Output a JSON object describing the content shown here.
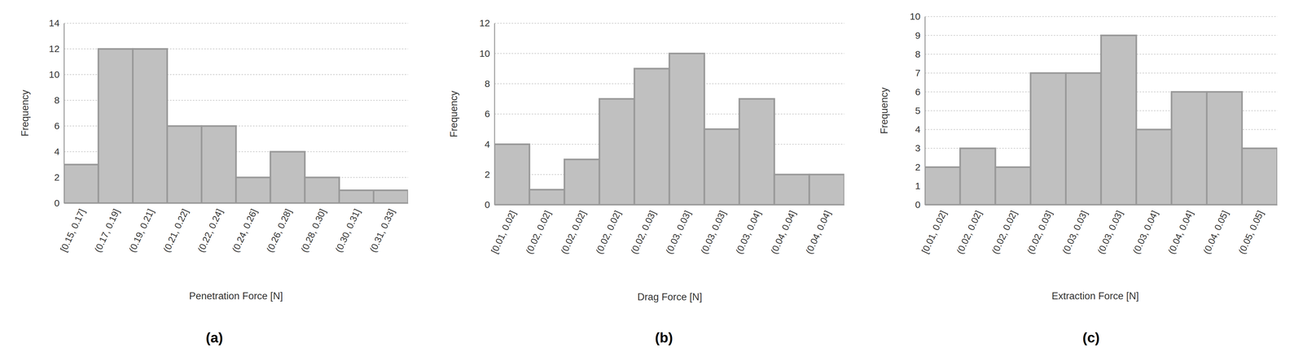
{
  "chart_data": [
    {
      "type": "bar",
      "title": "(a)",
      "x_label": "Penetration Force [N]",
      "y_label": "Frequency",
      "categories": [
        "[0.15, 0.17]",
        "(0.17, 0.19]",
        "(0.19, 0.21]",
        "(0.21, 0.22]",
        "(0.22, 0.24]",
        "(0.24, 0.26]",
        "(0.26, 0.28]",
        "(0.28, 0.30]",
        "(0.30, 0.31]",
        "(0.31, 0.33]"
      ],
      "values": [
        3,
        12,
        12,
        6,
        6,
        2,
        4,
        2,
        1,
        1
      ],
      "color": "#c0c0c0",
      "ylim": [
        0,
        14
      ],
      "yticks": [
        0,
        2,
        4,
        6,
        8,
        10,
        12,
        14
      ],
      "grid": true
    },
    {
      "type": "bar",
      "title": "(b)",
      "x_label": "Drag Force [N]",
      "y_label": "Frequency",
      "categories": [
        "[0.01, 0.02]",
        "(0.02, 0.02]",
        "(0.02, 0.02]",
        "(0.02, 0.02]",
        "(0.02, 0.03]",
        "(0.03, 0.03]",
        "(0.03, 0.03]",
        "(0.03, 0.04]",
        "(0.04, 0.04]",
        "(0.04, 0.04]"
      ],
      "values": [
        4,
        1,
        3,
        7,
        9,
        10,
        5,
        7,
        2,
        2
      ],
      "color": "#c0c0c0",
      "ylim": [
        0,
        12
      ],
      "yticks": [
        0,
        2,
        4,
        6,
        8,
        10,
        12
      ],
      "grid": true
    },
    {
      "type": "bar",
      "title": "(c)",
      "x_label": "Extraction Force [N]",
      "y_label": "Frequency",
      "categories": [
        "[0.01, 0.02]",
        "(0.02, 0.02]",
        "(0.02, 0.02]",
        "(0.02, 0.03]",
        "(0.03, 0.03]",
        "(0.03, 0.03]",
        "(0.03, 0.04]",
        "(0.04, 0.04]",
        "(0.04, 0.05]",
        "(0.05, 0.05]"
      ],
      "values": [
        2,
        3,
        2,
        7,
        7,
        9,
        4,
        6,
        6,
        3
      ],
      "color": "#c0c0c0",
      "ylim": [
        0,
        10
      ],
      "yticks": [
        0,
        1,
        2,
        3,
        4,
        5,
        6,
        7,
        8,
        9,
        10
      ],
      "grid": true
    }
  ]
}
